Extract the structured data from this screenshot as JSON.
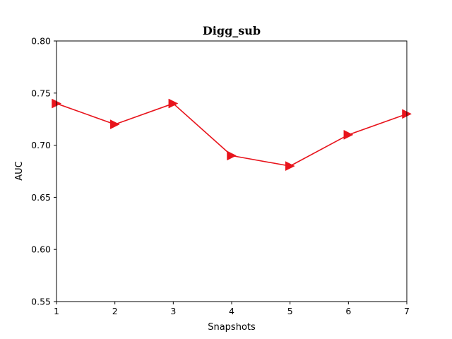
{
  "chart_data": {
    "type": "line",
    "title": "Digg_sub",
    "xlabel": "Snapshots",
    "ylabel": "AUC",
    "xlim": [
      1,
      7
    ],
    "ylim": [
      0.55,
      0.8
    ],
    "xticks": [
      "1",
      "2",
      "3",
      "4",
      "5",
      "6",
      "7"
    ],
    "yticks": [
      "0.55",
      "0.60",
      "0.65",
      "0.70",
      "0.75",
      "0.80"
    ],
    "grid": false,
    "series": [
      {
        "color": "#e8141c",
        "marker": "triangle-right",
        "x": [
          1,
          2,
          3,
          4,
          5,
          6,
          7
        ],
        "y": [
          0.74,
          0.72,
          0.74,
          0.69,
          0.68,
          0.71,
          0.73
        ]
      }
    ]
  }
}
